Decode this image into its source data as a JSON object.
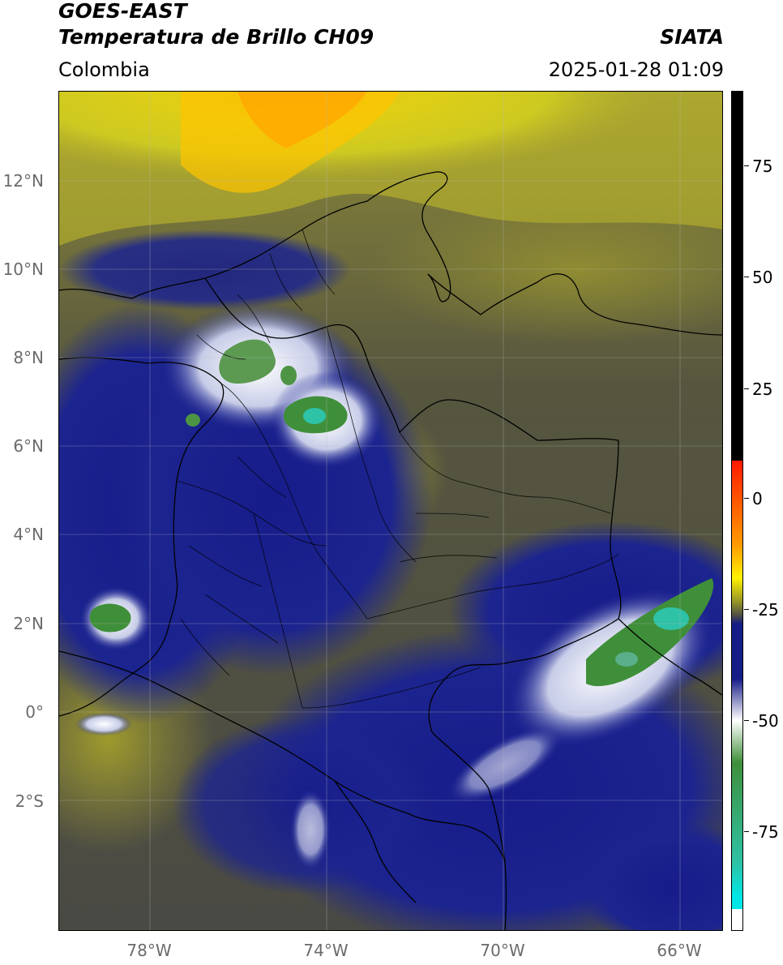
{
  "header": {
    "satellite": "GOES-EAST",
    "product": "Temperatura de Brillo CH09",
    "agency": "SIATA",
    "region": "Colombia",
    "datetime": "2025-01-28 01:09"
  },
  "map": {
    "lat_labels": [
      "12°N",
      "10°N",
      "8°N",
      "6°N",
      "4°N",
      "2°N",
      "0°",
      "2°S"
    ],
    "lon_labels": [
      "78°W",
      "74°W",
      "70°W",
      "66°W"
    ]
  },
  "colorbar": {
    "tick_labels": [
      "75",
      "50",
      "25",
      "0",
      "-25",
      "-50",
      "-75"
    ],
    "colors": {
      "black": "#000000",
      "red": "#ff1a00",
      "orange": "#ff9a00",
      "yellow": "#fff200",
      "olive": "#8f8f2a",
      "gray": "#4d4d46",
      "navy": "#151b87",
      "white": "#ffffff",
      "green": "#3f8f3a",
      "teal": "#2ec2a6",
      "cyan": "#00e6e6"
    }
  }
}
